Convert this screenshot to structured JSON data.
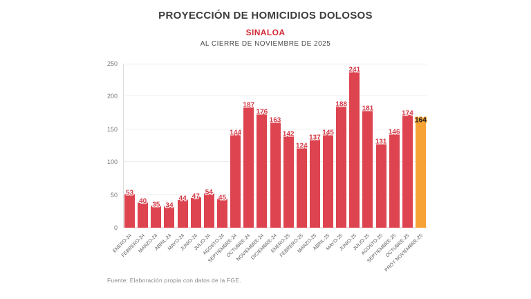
{
  "header": {
    "title": "PROYECCIÓN DE HOMICIDIOS DOLOSOS",
    "subtitle": "SINALOA",
    "caption": "AL CIERRE DE NOVIEMBRE DE 2025"
  },
  "footer": {
    "source": "Fuente: Elaboración propia con datos de la FGE."
  },
  "colors": {
    "bar": "#dd4450",
    "bar_highlight": "#f7a235",
    "bar_label": "#d33844",
    "bar_label_highlight": "#1f1f1f",
    "title": "#3d3d3d",
    "subtitle_accent": "#d42a35",
    "caption": "#4a4a4a",
    "axis_text": "#757575",
    "gridline": "#ececec"
  },
  "chart_data": {
    "type": "bar",
    "title": "PROYECCIÓN DE HOMICIDIOS DOLOSOS",
    "subtitle": "SINALOA",
    "caption": "AL CIERRE DE NOVIEMBRE DE 2025",
    "xlabel": "",
    "ylabel": "",
    "ylim": [
      0,
      250
    ],
    "yticks": [
      0,
      50,
      100,
      150,
      200,
      250
    ],
    "grid": true,
    "legend": false,
    "categories": [
      "ENERO-24",
      "FEBRERO-24",
      "MARZO-24",
      "ABRIL-24",
      "MAYO-24",
      "JUNIO-24",
      "JULIO-24",
      "AGOSTO-24",
      "SEPTIEMBRE-24",
      "OCTUBRE-24",
      "NOVIEMBRE-24",
      "DICIEMBRE-24",
      "ENERO-25",
      "FEBRERO-25",
      "MARZO-25",
      "ABRIL-25",
      "MAYO-25",
      "JUNIO-25",
      "JULIO-25",
      "AGOSTO-25",
      "SEPTIEMBRE-25",
      "OCTUBRE-25",
      "PROY NOVIEMBRE-25"
    ],
    "values": [
      53,
      40,
      35,
      34,
      44,
      47,
      54,
      45,
      144,
      187,
      176,
      163,
      142,
      124,
      137,
      145,
      188,
      241,
      181,
      131,
      146,
      174,
      164
    ],
    "highlight_index": 22
  }
}
